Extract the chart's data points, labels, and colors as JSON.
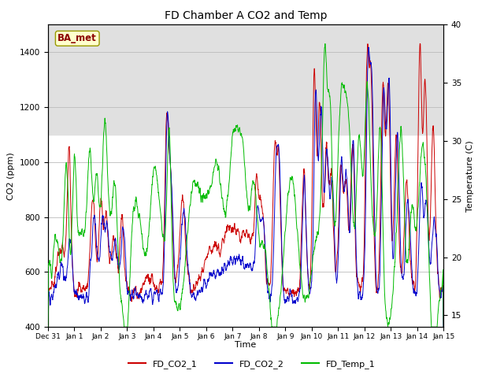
{
  "title": "FD Chamber A CO2 and Temp",
  "xlabel": "Time",
  "ylabel_left": "CO2 (ppm)",
  "ylabel_right": "Temperature (C)",
  "ylim_left": [
    400,
    1500
  ],
  "ylim_right": [
    14,
    40
  ],
  "co2_1_color": "#cc0000",
  "co2_2_color": "#0000cc",
  "temp_color": "#00bb00",
  "legend_labels": [
    "FD_CO2_1",
    "FD_CO2_2",
    "FD_Temp_1"
  ],
  "annotation_text": "BA_met",
  "annotation_color": "#8b0000",
  "annotation_bg": "#ffffcc",
  "bg_band_color": "#e0e0e0",
  "grid_color": "#bbbbbb",
  "x_tick_labels": [
    "Dec 31",
    "Jan 1",
    "Jan 2",
    "Jan 3",
    "Jan 4",
    "Jan 5",
    "Jan 6",
    "Jan 7",
    "Jan 8",
    "Jan 9",
    "Jan 10",
    "Jan 11",
    "Jan 12",
    "Jan 13",
    "Jan 14",
    "Jan 15"
  ],
  "n_points": 2000
}
